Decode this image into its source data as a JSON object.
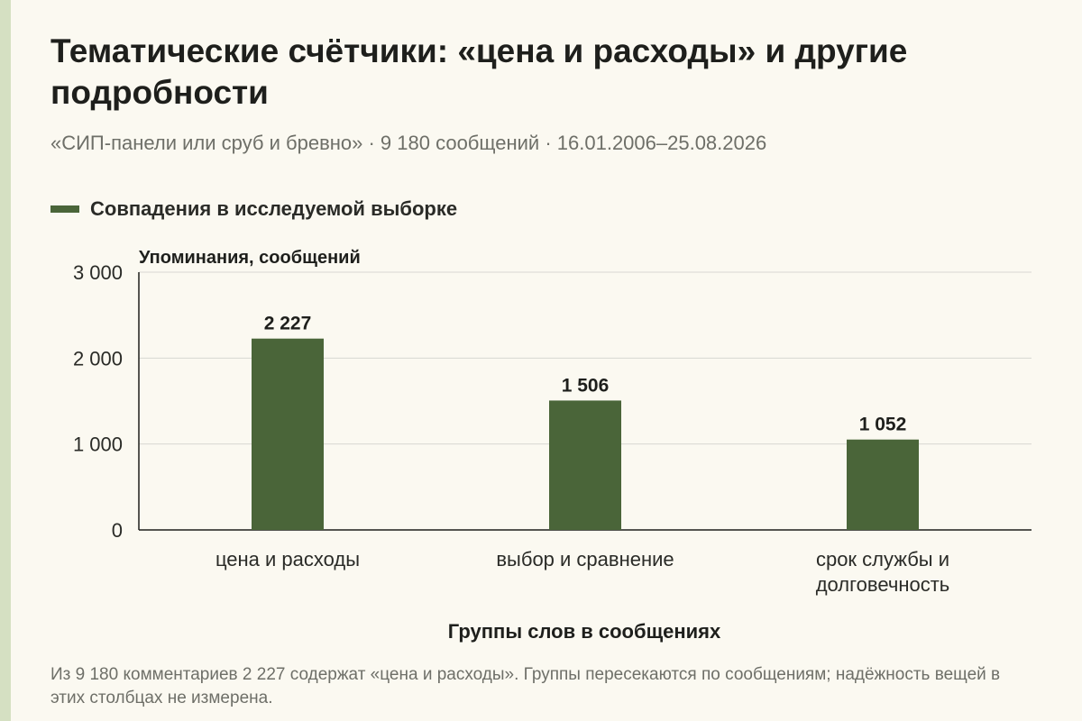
{
  "title": "Тематические счётчики: «цена и расходы» и другие подробности",
  "subtitle": "«СИП-панели или сруб и бревно» · 9 180 сообщений · 16.01.2006–25.08.2026",
  "footnote": "Из 9 180 комментариев 2 227 содержат «цена и расходы». Группы пересекаются по сообщениям; надёжность вещей в этих столбцах не измерена.",
  "colors": {
    "bar": "#4A6539",
    "grid": "#D8D8D2",
    "axis": "#1E1F1C",
    "side_strip": "#D5E0C2",
    "background": "#FBF9F1"
  },
  "chart_data": {
    "type": "bar",
    "categories": [
      [
        "цена и расходы"
      ],
      [
        "выбор и сравнение"
      ],
      [
        "срок службы и",
        "долговечность"
      ]
    ],
    "series": [
      {
        "name": "Совпадения в исследуемой выборке",
        "values": [
          2227,
          1506,
          1052
        ]
      }
    ],
    "data_labels": [
      "2 227",
      "1 506",
      "1 052"
    ],
    "ylabel": "Упоминания, сообщений",
    "xlabel": "Группы слов в сообщениях",
    "ylim": [
      0,
      3000
    ],
    "yticks": [
      0,
      1000,
      2000,
      3000
    ],
    "ytick_labels": [
      "0",
      "1 000",
      "2 000",
      "3 000"
    ],
    "grid": true,
    "legend_position": "top-left"
  }
}
